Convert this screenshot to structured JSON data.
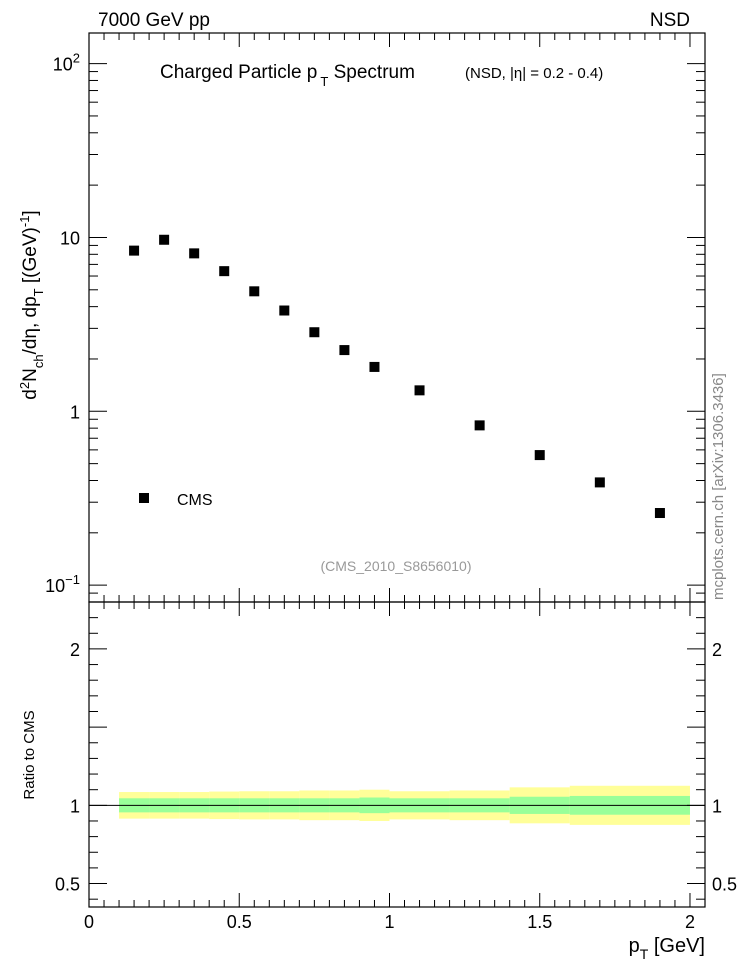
{
  "header": {
    "left_label": "7000 GeV pp",
    "right_label": "NSD",
    "side_label": "mcplots.cern.ch [arXiv:1306.3436]",
    "analysis_tag": "(CMS_2010_S8656010)"
  },
  "chart_data": [
    {
      "type": "scatter",
      "title": "Charged Particle p",
      "title_sub": "T",
      "title_rest": " Spectrum",
      "subtitle": "(NSD, |η| = 0.2 - 0.4)",
      "ylabel_parts": {
        "d": "d",
        "two": "2",
        "n": "N",
        "ch": "ch",
        "deta": "/dη, dp",
        "t": "T",
        "unit": " [(GeV)",
        "minus1": "-1",
        "close": "]"
      },
      "yscale": "log",
      "ylim": [
        0.08,
        150
      ],
      "xlim": [
        0,
        2.05
      ],
      "yticks": [
        {
          "value": 0.1,
          "base": "10",
          "exp": "−1"
        },
        {
          "value": 1,
          "base": "1",
          "exp": ""
        },
        {
          "value": 10,
          "base": "10",
          "exp": ""
        },
        {
          "value": 100,
          "base": "10",
          "exp": "2"
        }
      ],
      "legend": {
        "position": "lower-left",
        "entries": [
          "CMS"
        ]
      },
      "series": [
        {
          "name": "CMS",
          "color": "#000000",
          "marker": "square",
          "x": [
            0.15,
            0.25,
            0.35,
            0.45,
            0.55,
            0.65,
            0.75,
            0.85,
            0.95,
            1.1,
            1.3,
            1.5,
            1.7,
            1.9
          ],
          "y": [
            8.4,
            9.7,
            8.1,
            6.4,
            4.9,
            3.8,
            2.85,
            2.25,
            1.8,
            1.32,
            0.83,
            0.56,
            0.39,
            0.26
          ]
        }
      ]
    },
    {
      "type": "area",
      "ylabel": "Ratio to CMS",
      "xlabel": "p",
      "xlabel_sub": "T",
      "xlabel_unit": " [GeV]",
      "ylim": [
        0.35,
        2.3
      ],
      "xlim": [
        0,
        2.05
      ],
      "xticks": [
        {
          "value": 0,
          "label": "0"
        },
        {
          "value": 0.5,
          "label": "0.5"
        },
        {
          "value": 1,
          "label": "1"
        },
        {
          "value": 1.5,
          "label": "1.5"
        },
        {
          "value": 2,
          "label": "2"
        }
      ],
      "yticks": [
        {
          "value": 0.5,
          "label": "0.5"
        },
        {
          "value": 1,
          "label": "1"
        },
        {
          "value": 2,
          "label": "2"
        }
      ],
      "reference_line": 1,
      "bands": {
        "outer_color": "#ffff99",
        "inner_color": "#99ff99",
        "bins": [
          {
            "x0": 0.1,
            "x1": 0.2,
            "outer": [
              0.915,
              1.085
            ],
            "inner": [
              0.955,
              1.045
            ]
          },
          {
            "x0": 0.2,
            "x1": 0.3,
            "outer": [
              0.915,
              1.085
            ],
            "inner": [
              0.955,
              1.045
            ]
          },
          {
            "x0": 0.3,
            "x1": 0.4,
            "outer": [
              0.915,
              1.085
            ],
            "inner": [
              0.955,
              1.045
            ]
          },
          {
            "x0": 0.4,
            "x1": 0.5,
            "outer": [
              0.912,
              1.088
            ],
            "inner": [
              0.955,
              1.045
            ]
          },
          {
            "x0": 0.5,
            "x1": 0.6,
            "outer": [
              0.91,
              1.09
            ],
            "inner": [
              0.955,
              1.045
            ]
          },
          {
            "x0": 0.6,
            "x1": 0.7,
            "outer": [
              0.91,
              1.09
            ],
            "inner": [
              0.955,
              1.045
            ]
          },
          {
            "x0": 0.7,
            "x1": 0.8,
            "outer": [
              0.905,
              1.095
            ],
            "inner": [
              0.955,
              1.045
            ]
          },
          {
            "x0": 0.8,
            "x1": 0.9,
            "outer": [
              0.905,
              1.095
            ],
            "inner": [
              0.955,
              1.045
            ]
          },
          {
            "x0": 0.9,
            "x1": 1.0,
            "outer": [
              0.9,
              1.1
            ],
            "inner": [
              0.95,
              1.05
            ]
          },
          {
            "x0": 1.0,
            "x1": 1.2,
            "outer": [
              0.91,
              1.09
            ],
            "inner": [
              0.955,
              1.045
            ]
          },
          {
            "x0": 1.2,
            "x1": 1.4,
            "outer": [
              0.905,
              1.095
            ],
            "inner": [
              0.955,
              1.045
            ]
          },
          {
            "x0": 1.4,
            "x1": 1.6,
            "outer": [
              0.885,
              1.115
            ],
            "inner": [
              0.945,
              1.055
            ]
          },
          {
            "x0": 1.6,
            "x1": 2.0,
            "outer": [
              0.875,
              1.125
            ],
            "inner": [
              0.94,
              1.06
            ]
          }
        ]
      }
    }
  ]
}
